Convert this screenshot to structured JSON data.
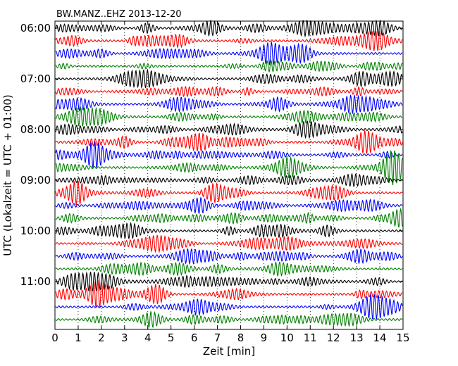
{
  "chart_data": {
    "type": "line",
    "title": "BW.MANZ..EHZ 2013-12-20",
    "xlabel": "Zeit  [min]",
    "ylabel": "UTC (Lokalzeit = UTC + 01:00)",
    "xlim": [
      0,
      15
    ],
    "x_ticks": [
      "0",
      "1",
      "2",
      "3",
      "4",
      "5",
      "6",
      "7",
      "8",
      "9",
      "10",
      "11",
      "12",
      "13",
      "14",
      "15"
    ],
    "y_tick_labels": [
      "06:00",
      "07:00",
      "08:00",
      "09:00",
      "10:00",
      "11:00"
    ],
    "grid": "vertical dotted at each minute",
    "trace_interval_min": 15,
    "trace_colors": [
      "#000000",
      "#ff0000",
      "#0000ff",
      "#008000"
    ],
    "traces": [
      {
        "start": "06:00"
      },
      {
        "start": "06:15"
      },
      {
        "start": "06:30"
      },
      {
        "start": "06:45"
      },
      {
        "start": "07:00"
      },
      {
        "start": "07:15"
      },
      {
        "start": "07:30"
      },
      {
        "start": "07:45"
      },
      {
        "start": "08:00"
      },
      {
        "start": "08:15"
      },
      {
        "start": "08:30"
      },
      {
        "start": "08:45"
      },
      {
        "start": "09:00"
      },
      {
        "start": "09:15"
      },
      {
        "start": "09:30"
      },
      {
        "start": "09:45"
      },
      {
        "start": "10:00"
      },
      {
        "start": "10:15"
      },
      {
        "start": "10:30"
      },
      {
        "start": "10:45"
      },
      {
        "start": "11:00"
      },
      {
        "start": "11:15"
      },
      {
        "start": "11:30"
      },
      {
        "start": "11:45"
      }
    ]
  }
}
